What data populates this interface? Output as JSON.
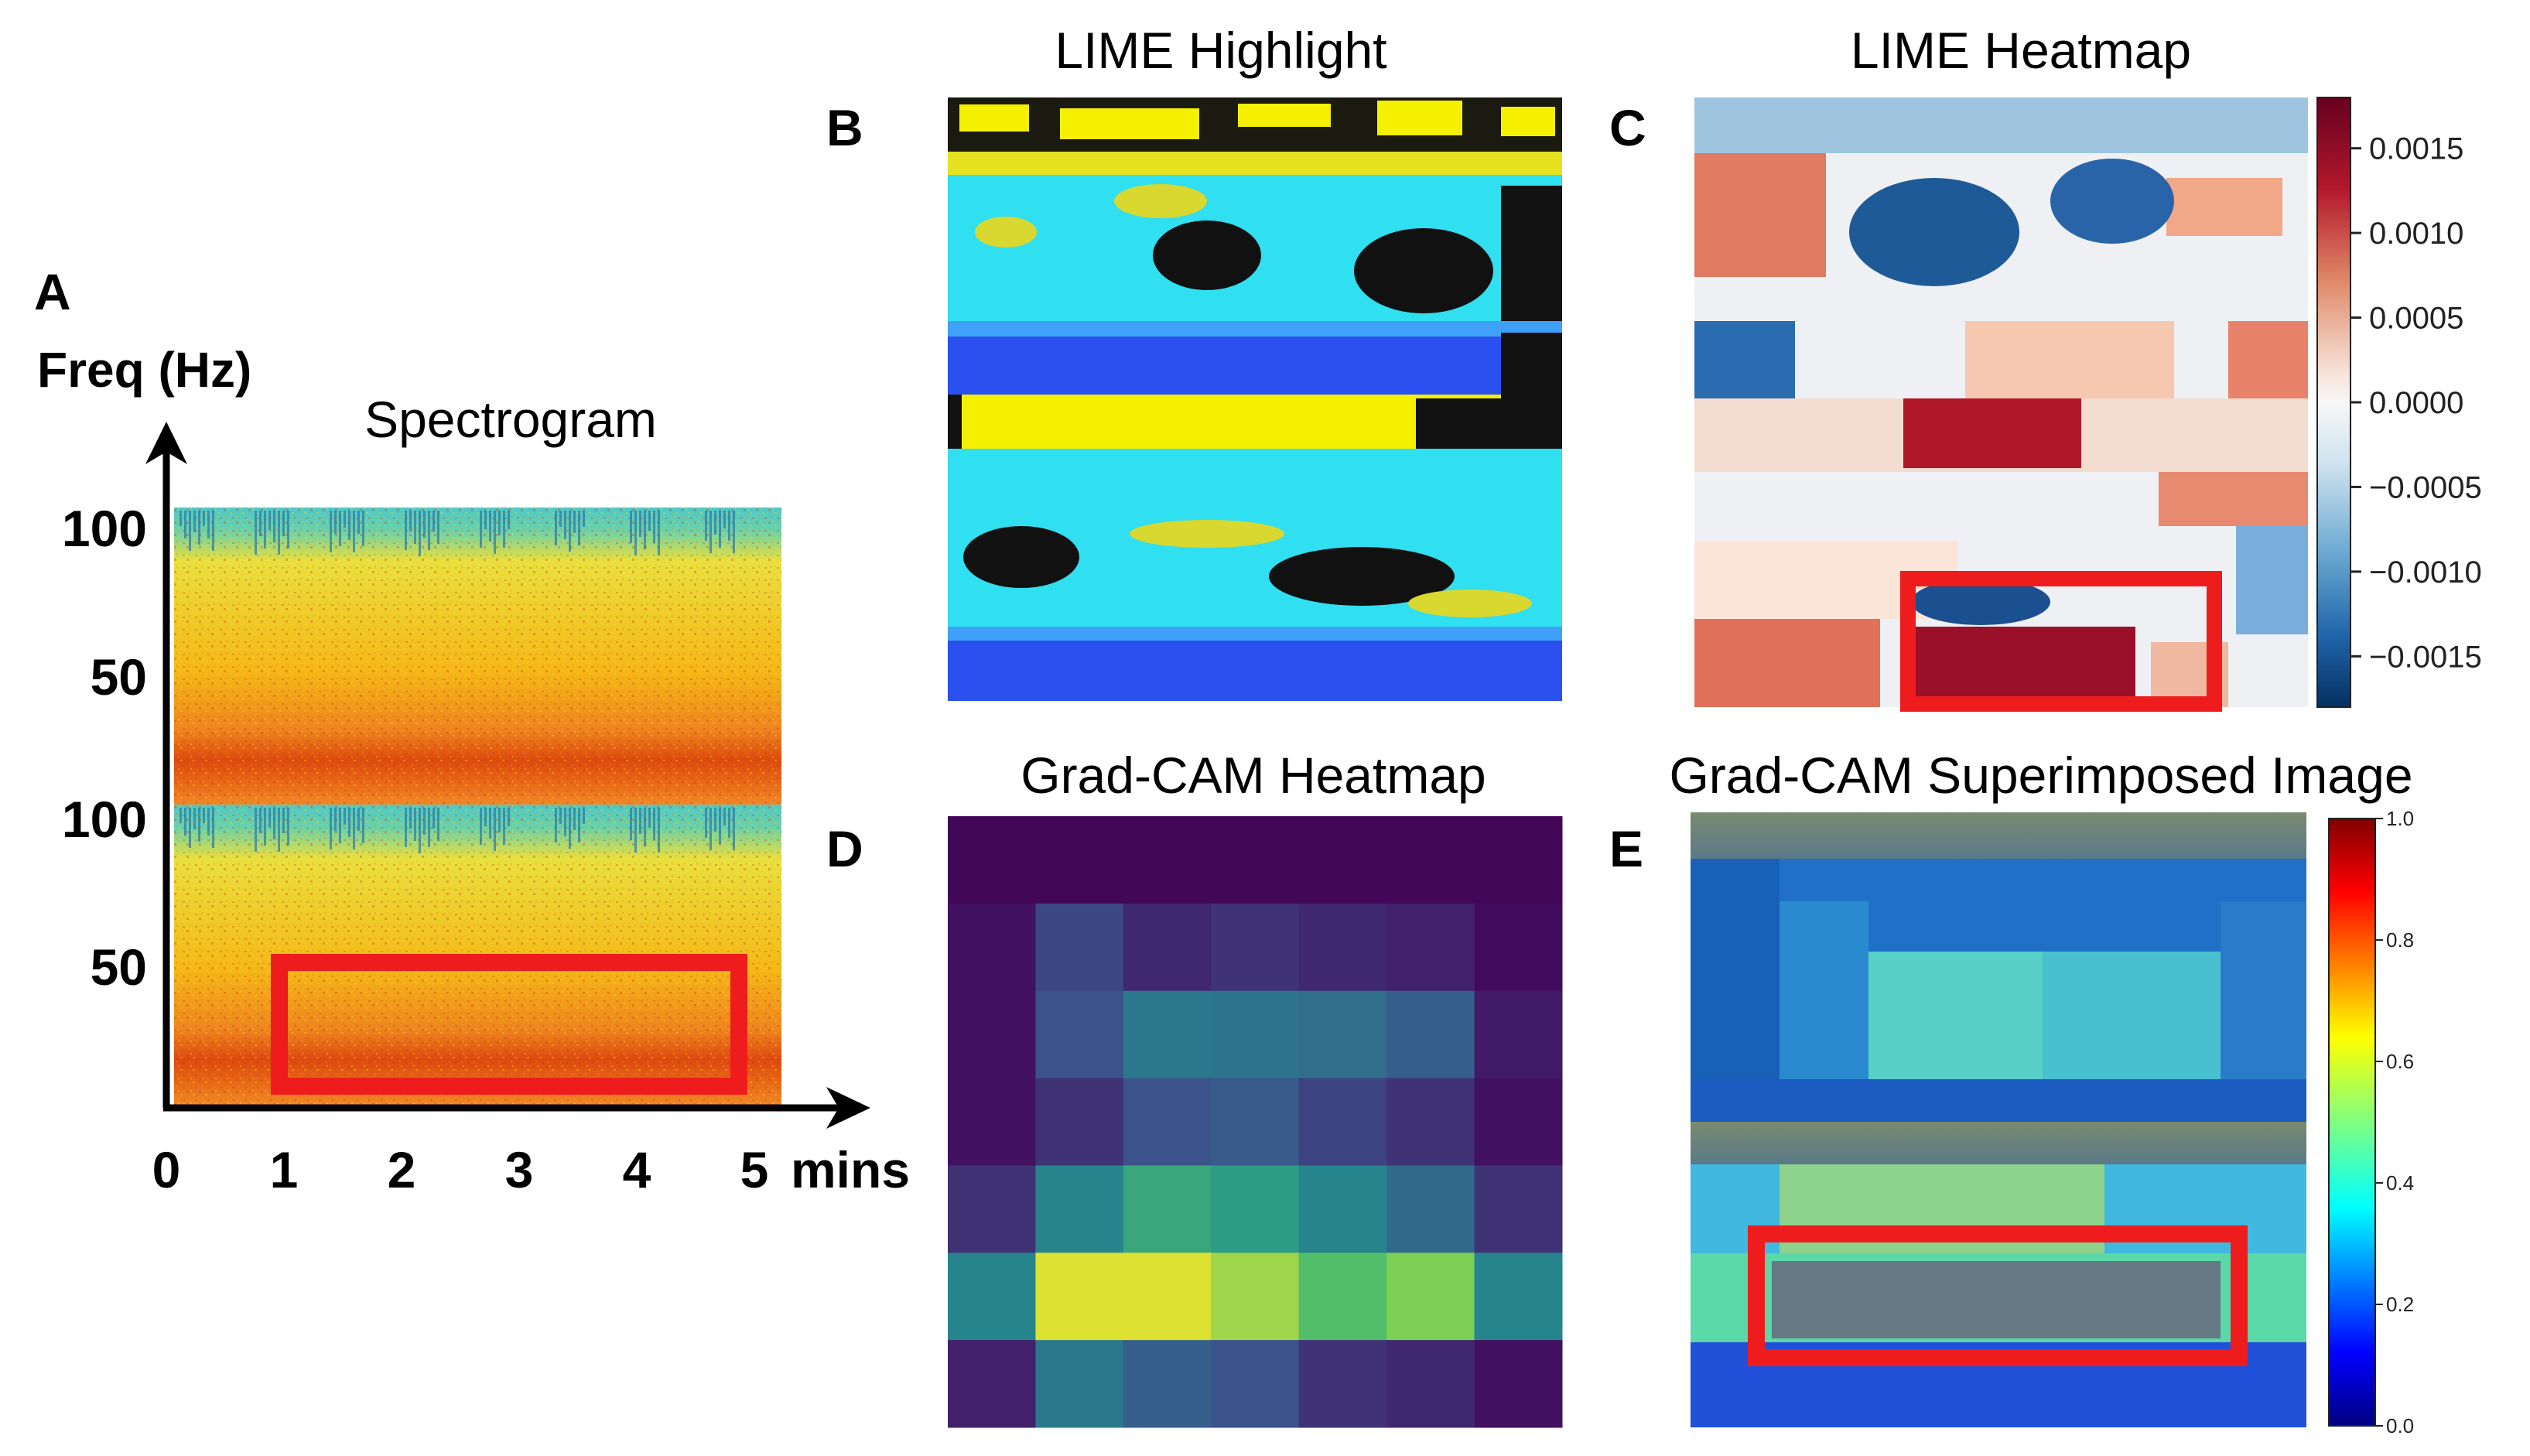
{
  "panel_labels": {
    "a": "A",
    "b": "B",
    "c": "C",
    "d": "D",
    "e": "E"
  },
  "panel_a": {
    "title": "Spectrogram",
    "y_axis_label": "Freq (Hz)",
    "y_ticks_top": [
      "100",
      "50"
    ],
    "y_ticks_bottom": [
      "100",
      "50"
    ],
    "x_ticks": [
      "0",
      "1",
      "2",
      "3",
      "4",
      "5"
    ],
    "x_unit": "mins",
    "highlight_box": {
      "start_min": 1,
      "end_min": 5
    }
  },
  "panel_b": {
    "title": "LIME Highlight"
  },
  "panel_c": {
    "title": "LIME Heatmap",
    "colorbar_ticks": [
      "0.0015",
      "0.0010",
      "0.0005",
      "0.0000",
      "−0.0005",
      "−0.0010",
      "−0.0015"
    ],
    "colorbar_range": [
      -0.0018,
      0.0018
    ]
  },
  "panel_d": {
    "title": "Grad-CAM Heatmap",
    "grid": [
      [
        0.02,
        0.02,
        0.02,
        0.02,
        0.02,
        0.02,
        0.02
      ],
      [
        0.05,
        0.22,
        0.12,
        0.15,
        0.12,
        0.1,
        0.03
      ],
      [
        0.05,
        0.25,
        0.4,
        0.38,
        0.36,
        0.3,
        0.08
      ],
      [
        0.05,
        0.15,
        0.25,
        0.28,
        0.2,
        0.15,
        0.05
      ],
      [
        0.15,
        0.45,
        0.6,
        0.55,
        0.45,
        0.35,
        0.15
      ],
      [
        0.45,
        0.95,
        0.95,
        0.85,
        0.7,
        0.8,
        0.45
      ],
      [
        0.1,
        0.4,
        0.3,
        0.25,
        0.15,
        0.12,
        0.05
      ]
    ]
  },
  "panel_e": {
    "title": "Grad-CAM Superimposed Image",
    "colorbar_ticks": [
      "1.0",
      "0.8",
      "0.6",
      "0.4",
      "0.2",
      "0.0"
    ]
  }
}
